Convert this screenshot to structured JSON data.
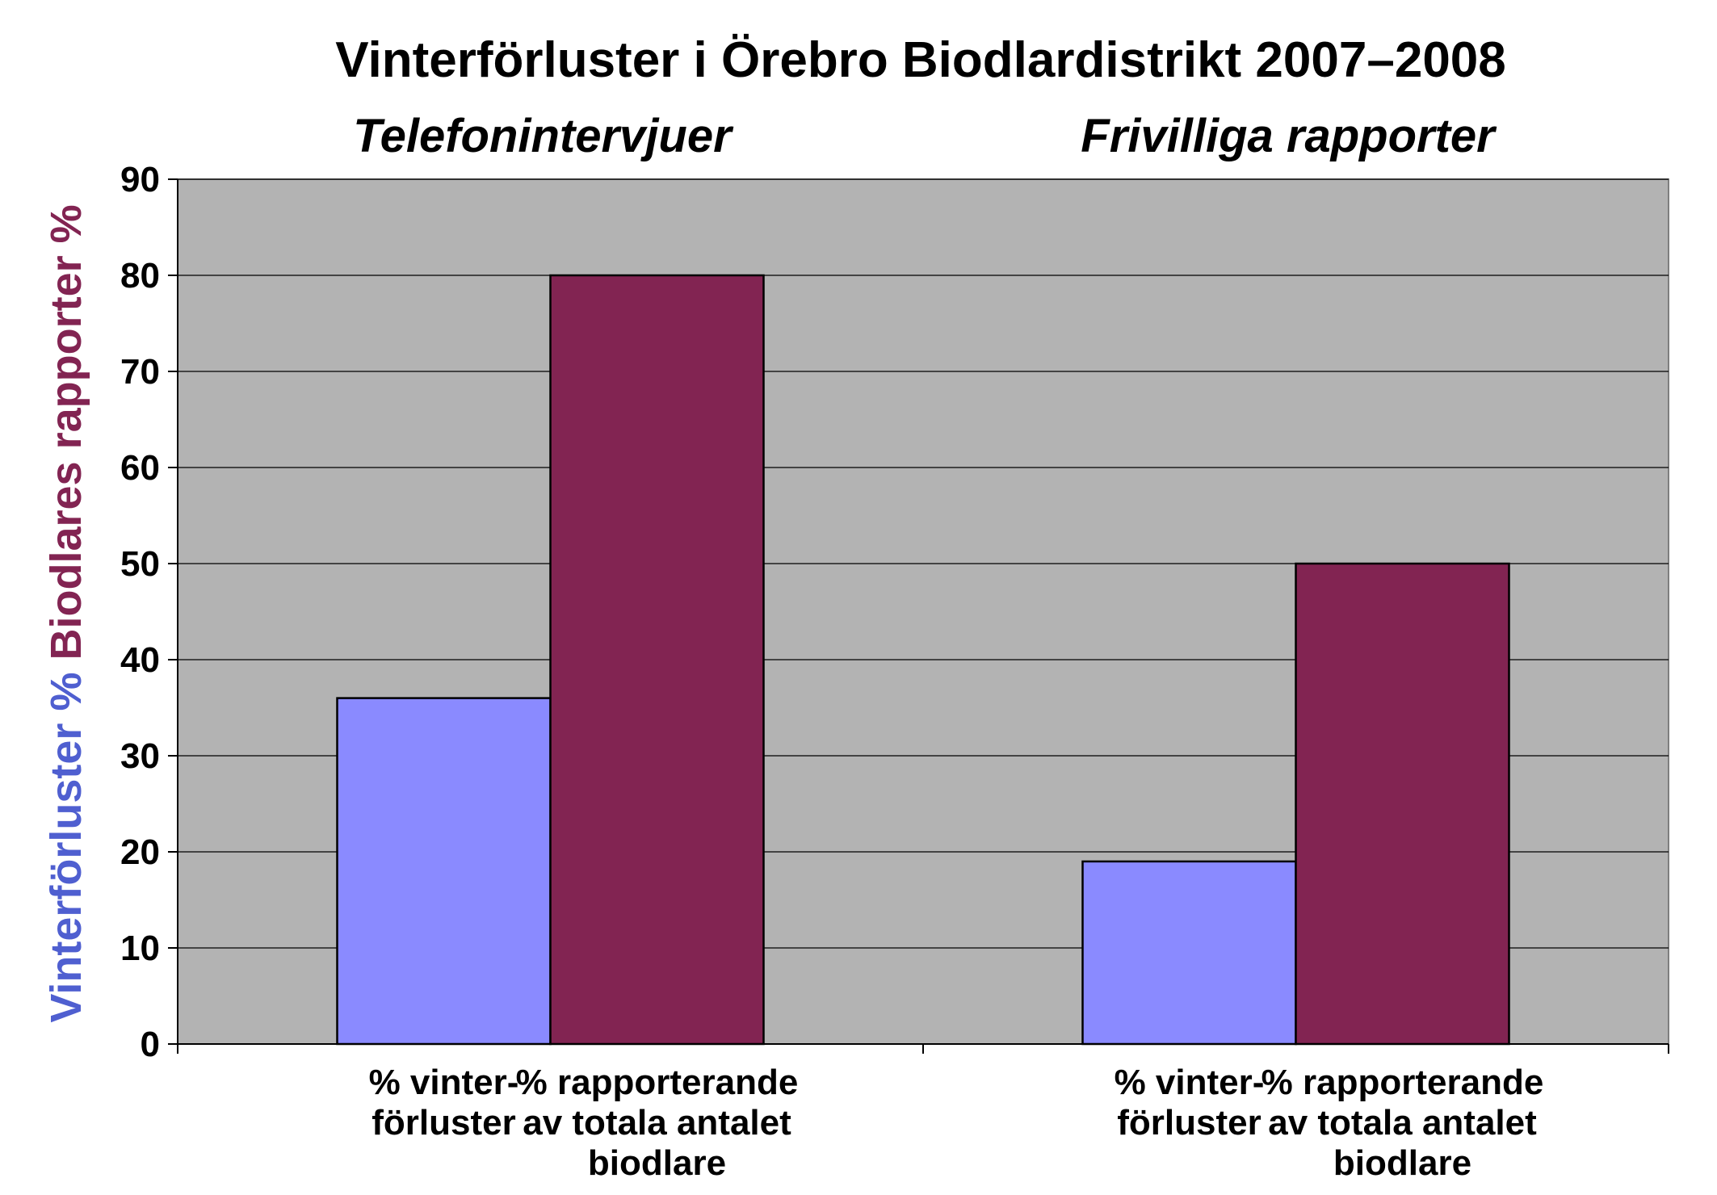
{
  "chart_data": {
    "type": "bar",
    "title": "Vinterförluster i Örebro Biodlardistrikt 2007–2008",
    "ylabel_parts": [
      {
        "text": "Vinterförluster % ",
        "color": "#4f5fd0"
      },
      {
        "text": "Biodlares rapporter %",
        "color": "#822452"
      }
    ],
    "ylim": [
      0,
      90
    ],
    "yticks": [
      0,
      10,
      20,
      30,
      40,
      50,
      60,
      70,
      80,
      90
    ],
    "grid": true,
    "groups": [
      {
        "label": "Telefonintervjuer",
        "bars": [
          {
            "label_lines": [
              "% vinter-",
              "förluster"
            ],
            "value": 36,
            "color": "#8a8aff"
          },
          {
            "label_lines": [
              "% rapporterande",
              "av totala antalet",
              "biodlare"
            ],
            "value": 80,
            "color": "#822452"
          }
        ]
      },
      {
        "label": "Frivilliga rapporter",
        "bars": [
          {
            "label_lines": [
              "% vinter-",
              "förluster"
            ],
            "value": 19,
            "color": "#8a8aff"
          },
          {
            "label_lines": [
              "% rapporterande",
              "av totala antalet",
              "biodlare"
            ],
            "value": 50,
            "color": "#822452"
          }
        ]
      }
    ],
    "plot_background": "#b3b3b3"
  }
}
